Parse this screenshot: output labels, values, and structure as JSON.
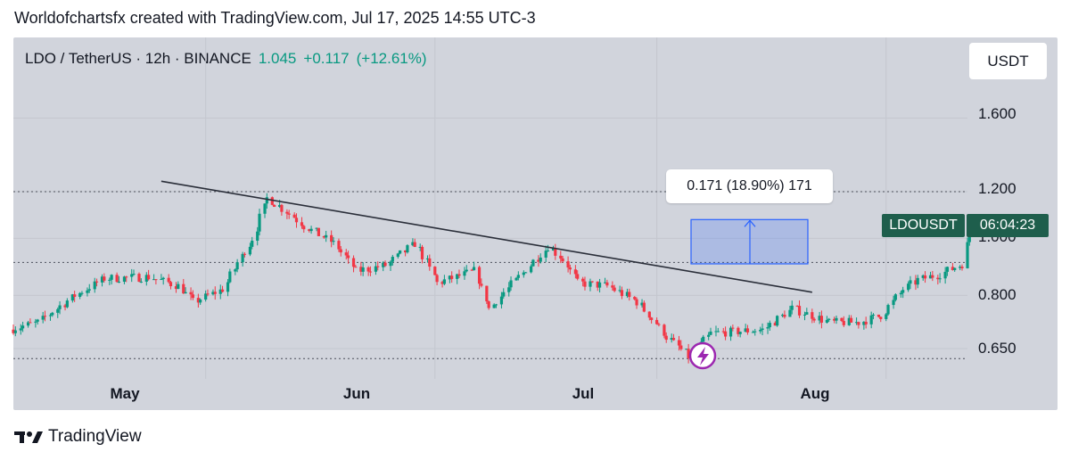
{
  "header": {
    "credit": "Worldofchartsfx created with TradingView.com, Jul 17, 2025 14:55 UTC-3"
  },
  "symbol": {
    "title": "LDO / TetherUS · 12h · BINANCE",
    "last": "1.045",
    "change": "+0.117",
    "change_pct": "(+12.61%)",
    "currency": "USDT"
  },
  "measure": {
    "label": "0.171 (18.90%) 171",
    "from": 0.905,
    "to": 1.076
  },
  "price_tag": {
    "symbol": "LDOUSDT",
    "countdown": "06:04:23",
    "color": "#1e5e4c"
  },
  "footer": {
    "brand": "TradingView"
  },
  "colors": {
    "up": "#089981",
    "down": "#f23645",
    "measure": "#2962ff",
    "trend": "#2a2e39",
    "background": "#d1d4dc"
  },
  "icons": {
    "lightning": "lightning-icon",
    "logo": "tradingview-logo-icon"
  },
  "chart_data": {
    "type": "candlestick",
    "title": "LDO / TetherUS · 12h · BINANCE",
    "scale": "log",
    "y_ticks": [
      "1.600",
      "1.200",
      "1.000",
      "0.800",
      "0.650"
    ],
    "y_tick_values": [
      1.6,
      1.2,
      1.0,
      0.8,
      0.65
    ],
    "x_ticks": [
      "May",
      "Jun",
      "Jul",
      "Aug"
    ],
    "x_tick_dates": [
      "2025-05-01",
      "2025-06-01",
      "2025-07-01",
      "2025-08-01"
    ],
    "x_range": [
      "2025-04-05",
      "2025-08-12"
    ],
    "horizontal_levels": [
      1.2,
      0.91,
      0.625
    ],
    "trendline": {
      "from": [
        "2025-04-25",
        1.25
      ],
      "to": [
        "2025-07-22",
        0.81
      ]
    },
    "series_path": [
      [
        "2025-04-05",
        0.7
      ],
      [
        "2025-04-09",
        0.72
      ],
      [
        "2025-04-14",
        0.8
      ],
      [
        "2025-04-18",
        0.855
      ],
      [
        "2025-04-24",
        0.86
      ],
      [
        "2025-04-28",
        0.83
      ],
      [
        "2025-04-30",
        0.78
      ],
      [
        "2025-05-04",
        0.82
      ],
      [
        "2025-05-08",
        1.0
      ],
      [
        "2025-05-10",
        1.17
      ],
      [
        "2025-05-13",
        1.1
      ],
      [
        "2025-05-15",
        1.05
      ],
      [
        "2025-05-19",
        0.98
      ],
      [
        "2025-05-22",
        0.88
      ],
      [
        "2025-05-26",
        0.9
      ],
      [
        "2025-05-30",
        0.98
      ],
      [
        "2025-06-02",
        0.84
      ],
      [
        "2025-06-07",
        0.88
      ],
      [
        "2025-06-09",
        0.76
      ],
      [
        "2025-06-13",
        0.86
      ],
      [
        "2025-06-17",
        0.97
      ],
      [
        "2025-06-19",
        0.92
      ],
      [
        "2025-06-21",
        0.84
      ],
      [
        "2025-06-25",
        0.83
      ],
      [
        "2025-06-29",
        0.78
      ],
      [
        "2025-07-03",
        0.68
      ],
      [
        "2025-07-06",
        0.63
      ],
      [
        "2025-07-09",
        0.69
      ],
      [
        "2025-07-16",
        0.7
      ],
      [
        "2025-07-20",
        0.76
      ],
      [
        "2025-07-25",
        0.72
      ],
      [
        "2025-07-29",
        0.72
      ],
      [
        "2025-08-01",
        0.74
      ],
      [
        "2025-08-04",
        0.82
      ],
      [
        "2025-08-06",
        0.85
      ],
      [
        "2025-08-09",
        0.87
      ],
      [
        "2025-08-12",
        0.905
      ],
      [
        "2025-08-13",
        1.045
      ]
    ]
  }
}
